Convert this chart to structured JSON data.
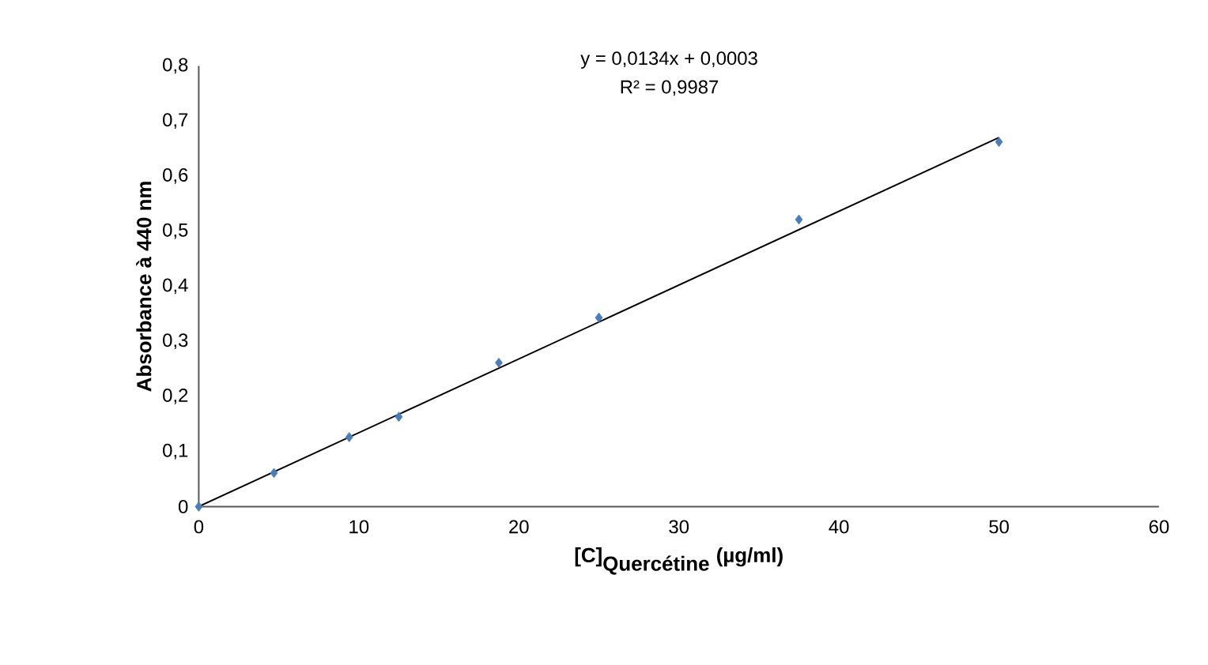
{
  "chart_data": {
    "type": "scatter",
    "xlabel": "\\textbf{[C]}_{\\textbf{Quercétine}}\\ \\textbf{(µg/ml)}",
    "ylabel": "Absorbance à 440 nm",
    "annotations": [
      "y = 0,0134x + 0,0003",
      "R² = 0,9987"
    ],
    "series": [
      {
        "color": "#4a7ebb",
        "marker": "diamond",
        "x": [
          0,
          4.7,
          9.4,
          12.5,
          18.75,
          25,
          37.5,
          50
        ],
        "values": [
          0,
          0.061,
          0.126,
          0.163,
          0.261,
          0.343,
          0.521,
          0.662
        ]
      },
      {
        "type": "line",
        "color": "#000000",
        "marker": "none",
        "x": [
          0,
          50
        ],
        "values": [
          0,
          0.67
        ]
      }
    ],
    "xlim": [
      0,
      60
    ],
    "xticks": [
      0,
      10,
      20,
      30,
      40,
      50,
      60
    ],
    "ylim": [
      0,
      0.8
    ],
    "yticks": [
      {
        "value": 0,
        "label": "0"
      },
      {
        "value": 0.1,
        "label": "0,1"
      },
      {
        "value": 0.2,
        "label": "0,2"
      },
      {
        "value": 0.3,
        "label": "0,3"
      },
      {
        "value": 0.4,
        "label": "0,4"
      },
      {
        "value": 0.5,
        "label": "0,5"
      },
      {
        "value": 0.6,
        "label": "0,6"
      },
      {
        "value": 0.7,
        "label": "0,7"
      },
      {
        "value": 0.8,
        "label": "0,8"
      }
    ],
    "grid": false
  }
}
